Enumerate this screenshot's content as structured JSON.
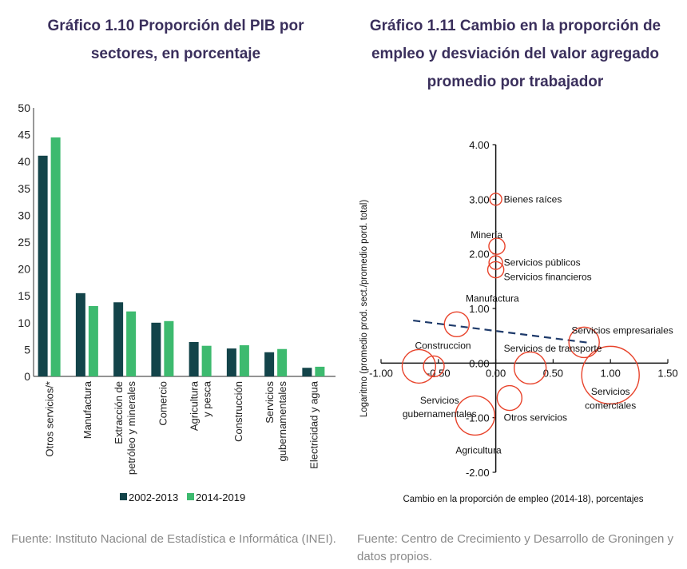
{
  "left": {
    "title": "Gráfico 1.10 Proporción del PIB por sectores, en porcentaje",
    "source": "Fuente: Instituto Nacional de Estadística e Informática (INEI)."
  },
  "right": {
    "title": "Gráfico 1.11 Cambio en la proporción de empleo y desviación del valor agregado promedio por trabajador",
    "source": "Fuente: Centro de Crecimiento y Desarrollo de Groningen y datos propios."
  },
  "chart_data": [
    {
      "type": "bar",
      "title": "Gráfico 1.10 Proporción del PIB por sectores, en porcentaje",
      "xlabel": "",
      "ylabel": "",
      "ylim": [
        0,
        50
      ],
      "yticks": [
        0,
        5,
        10,
        15,
        20,
        25,
        30,
        35,
        40,
        45,
        50
      ],
      "categories": [
        [
          "Otros servicios/*"
        ],
        [
          "Manufactura"
        ],
        [
          "Extracción de",
          "petróleo y minerales"
        ],
        [
          "Comercio"
        ],
        [
          "Agricultura",
          "y pesca"
        ],
        [
          "Construcción"
        ],
        [
          "Servicios",
          "gubernamentales"
        ],
        [
          "Electricidad y agua"
        ]
      ],
      "series": [
        {
          "name": "2002-2013",
          "color": "#13444a",
          "values": [
            41.1,
            15.5,
            13.8,
            10.0,
            6.4,
            5.2,
            4.5,
            1.6
          ]
        },
        {
          "name": "2014-2019",
          "color": "#3dba6f",
          "values": [
            44.5,
            13.1,
            12.1,
            10.3,
            5.7,
            5.8,
            5.1,
            1.8
          ]
        }
      ],
      "legend": "bottom",
      "grid": false
    },
    {
      "type": "scatter",
      "title": "Gráfico 1.11 Cambio en la proporción de empleo y desviación del valor agregado promedio por trabajador",
      "xlabel": "Cambio en la proporción de empleo (2014-18), porcentajes",
      "ylabel": "Logaritmo (promedio prod. sect./promedio pord. total)",
      "xlim": [
        -1.0,
        1.5
      ],
      "ylim": [
        -2.0,
        4.0
      ],
      "xticks": [
        "-1.00",
        "-0.50",
        "0.00",
        "0.50",
        "1.00",
        "1.50"
      ],
      "yticks": [
        "4.00",
        "3.00",
        "2.00",
        "1.00",
        "0.00",
        "-1.00",
        "-2.00"
      ],
      "marker_color": "#e8432b",
      "trend_color": "#1f3b6b",
      "points": [
        {
          "label": "Bienes raíces",
          "x": 0.0,
          "y": 3.0,
          "size": 0.11
        },
        {
          "label": "Minería",
          "x": 0.01,
          "y": 2.14,
          "size": 0.19
        },
        {
          "label": "Servicios públicos",
          "x": 0.0,
          "y": 1.84,
          "size": 0.14
        },
        {
          "label": "Servicios financieros",
          "x": 0.0,
          "y": 1.71,
          "size": 0.19
        },
        {
          "label": "Manufactura",
          "x": -0.34,
          "y": 0.71,
          "size": 0.36
        },
        {
          "label": "Construccion",
          "x": -0.67,
          "y": -0.06,
          "size": 0.53
        },
        {
          "label": "",
          "x": -0.54,
          "y": -0.06,
          "size": 0.28
        },
        {
          "label": "Servicios empresariales",
          "x": 0.77,
          "y": 0.38,
          "size": 0.47
        },
        {
          "label": "Servicios de transporte",
          "x": 0.3,
          "y": -0.09,
          "size": 0.5
        },
        {
          "label": "Servicios comerciales",
          "x": 1.0,
          "y": -0.22,
          "size": 1.0
        },
        {
          "label": "Otros servicios",
          "x": 0.12,
          "y": -0.64,
          "size": 0.36
        },
        {
          "label": "Agricultura",
          "x": -0.18,
          "y": -0.96,
          "size": 0.64
        },
        {
          "label": "Servicios gubernamentales",
          "x": -0.67,
          "y": -0.06,
          "size": 0.0
        }
      ],
      "labels": [
        {
          "text": "Bienes raíces",
          "x": 0.07,
          "y": 3.0,
          "anchor": "start"
        },
        {
          "text": "Minería",
          "x": -0.08,
          "y": 2.35,
          "anchor": "middle"
        },
        {
          "text": "Servicios públicos",
          "x": 0.07,
          "y": 1.84,
          "anchor": "start"
        },
        {
          "text": "Servicios financieros",
          "x": 0.07,
          "y": 1.58,
          "anchor": "start"
        },
        {
          "text": "Manufactura",
          "x": -0.03,
          "y": 1.18,
          "anchor": "middle"
        },
        {
          "text": "Construccion",
          "x": -0.46,
          "y": 0.32,
          "anchor": "middle"
        },
        {
          "text": "Servicios empresariales",
          "x": 0.66,
          "y": 0.6,
          "anchor": "start"
        },
        {
          "text": "Servicios de transporte",
          "x": 0.07,
          "y": 0.27,
          "anchor": "start"
        },
        {
          "text": "Servicios",
          "x": 1.0,
          "y": -0.52,
          "anchor": "middle"
        },
        {
          "text": "comerciales",
          "x": 1.0,
          "y": -0.78,
          "anchor": "middle"
        },
        {
          "text": "Otros servicios",
          "x": 0.07,
          "y": -1.0,
          "anchor": "start"
        },
        {
          "text": "Servicios",
          "x": -0.49,
          "y": -0.68,
          "anchor": "middle"
        },
        {
          "text": "gubernamentales",
          "x": -0.49,
          "y": -0.93,
          "anchor": "middle"
        },
        {
          "text": "Agricultura",
          "x": -0.15,
          "y": -1.6,
          "anchor": "middle"
        }
      ],
      "trendline": {
        "x": [
          -0.72,
          0.82
        ],
        "y": [
          0.78,
          0.37
        ]
      },
      "grid": false
    }
  ]
}
